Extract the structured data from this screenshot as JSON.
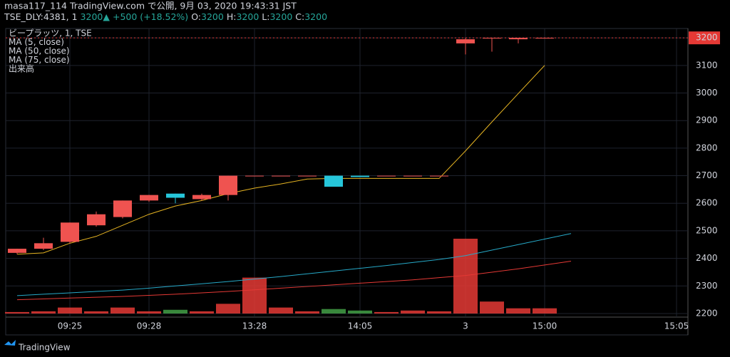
{
  "chart_data": {
    "type": "candlestick",
    "title": "masa117_114 TradingView.com で公開, 9月 03, 2020 19:43:31 JST",
    "quote_line": [
      "TSE_DLY:4381, 1",
      "3200",
      "▲",
      "+500 (+18.52%)",
      "O:",
      "3200",
      "H:",
      "3200",
      "L:",
      "3200",
      "C:",
      "3200"
    ],
    "legend_title": "ビープラッツ, 1, TSE",
    "footer": "TradingView",
    "categories": [
      null,
      null,
      "09:25",
      null,
      null,
      "09:28",
      null,
      null,
      null,
      "13:28",
      null,
      null,
      null,
      "14:05",
      null,
      null,
      null,
      "3",
      null,
      null,
      "15:00",
      null,
      null,
      null,
      null,
      "15:05"
    ],
    "open": [
      2420,
      2435,
      2460,
      2520,
      2550,
      2610,
      2635,
      2615,
      2630,
      2700,
      2700,
      2700,
      2700,
      2700,
      2700,
      2700,
      2700,
      3180,
      3200,
      3195,
      3200,
      null,
      null,
      null,
      null,
      null
    ],
    "high": [
      2435,
      2475,
      2530,
      2570,
      2610,
      2630,
      2635,
      2635,
      2700,
      2700,
      2700,
      2700,
      2700,
      2700,
      2700,
      2700,
      2700,
      3200,
      3200,
      3200,
      3200,
      null,
      null,
      null,
      null,
      null
    ],
    "low": [
      2415,
      2430,
      2455,
      2515,
      2545,
      2605,
      2600,
      2610,
      2610,
      2700,
      2700,
      2700,
      2660,
      2695,
      2700,
      2700,
      2700,
      3140,
      3150,
      3180,
      3200,
      null,
      null,
      null,
      null,
      null
    ],
    "close": [
      2435,
      2455,
      2530,
      2560,
      2610,
      2630,
      2620,
      2630,
      2700,
      2700,
      2700,
      2700,
      2660,
      2695,
      2700,
      2700,
      2700,
      3195,
      3200,
      3200,
      3200,
      null,
      null,
      null,
      null,
      null
    ],
    "up_color": "#ef5350",
    "down_color": "#26c6da",
    "series": [
      {
        "name": "MA (5, close)",
        "color": "#e6b422",
        "values": [
          2415,
          2420,
          2455,
          2480,
          2520,
          2560,
          2590,
          2610,
          2635,
          2655,
          2670,
          2688,
          2690,
          2690,
          2690,
          2690,
          2690,
          2790,
          2895,
          2998,
          3100,
          null,
          null,
          null,
          null,
          null
        ]
      },
      {
        "name": "MA (50, close)",
        "color": "#26a9c8",
        "values": [
          2265,
          2270,
          2275,
          2280,
          2285,
          2292,
          2300,
          2308,
          2316,
          2325,
          2334,
          2344,
          2354,
          2364,
          2374,
          2385,
          2396,
          2410,
          2430,
          2450,
          2470,
          2490,
          null,
          null,
          null,
          null
        ]
      },
      {
        "name": "MA (75, close)",
        "color": "#e53935",
        "values": [
          2250,
          2253,
          2256,
          2259,
          2262,
          2266,
          2270,
          2275,
          2280,
          2286,
          2292,
          2298,
          2304,
          2310,
          2316,
          2322,
          2330,
          2338,
          2350,
          2362,
          2376,
          2390,
          null,
          null,
          null,
          null
        ]
      }
    ],
    "volume": {
      "name": "出来高",
      "up_color": "#e53935",
      "down_color": "#43a047",
      "values": [
        200,
        300,
        800,
        300,
        800,
        300,
        500,
        300,
        1300,
        4800,
        800,
        300,
        600,
        400,
        200,
        400,
        300,
        10000,
        1600,
        700,
        700,
        null,
        null,
        null,
        null,
        null
      ]
    },
    "ylim": [
      2187,
      3234
    ],
    "yticks": [
      2200,
      2300,
      2400,
      2500,
      2600,
      2700,
      2800,
      2900,
      3000,
      3100,
      3200
    ],
    "grid": true
  }
}
